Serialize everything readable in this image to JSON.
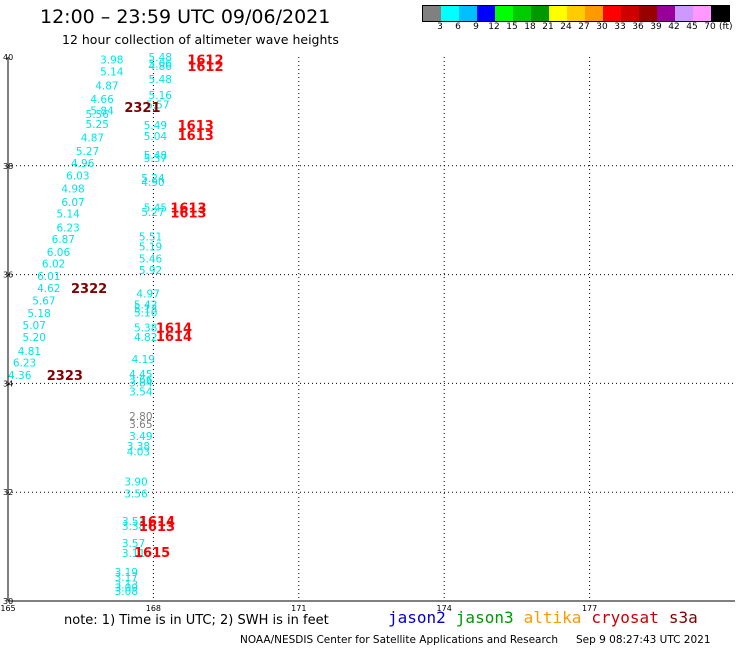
{
  "header": {
    "title": "12:00 – 23:59 UTC 09/06/2021",
    "subtitle": "12 hour collection of altimeter wave heights"
  },
  "legend": {
    "colors": [
      "#808080",
      "#00ffff",
      "#00bfff",
      "#0000ff",
      "#00ff00",
      "#00cc00",
      "#009900",
      "#ffff00",
      "#ffcc00",
      "#ff9900",
      "#ff0000",
      "#cc0000",
      "#990000",
      "#990099",
      "#cc99ff",
      "#ff99ff",
      "#000000"
    ],
    "labels": [
      "3",
      "6",
      "9",
      "12",
      "15",
      "18",
      "21",
      "24",
      "27",
      "30",
      "33",
      "36",
      "39",
      "42",
      "45",
      "70"
    ],
    "unit": "(ft)"
  },
  "map": {
    "lon_range": [
      165,
      180
    ],
    "lat_range": [
      30,
      40
    ],
    "lon_ticks": [
      "165",
      "168",
      "171",
      "174",
      "177"
    ],
    "lat_ticks": [
      "40",
      "38",
      "36",
      "34",
      "32",
      "30"
    ],
    "grid_lons": [
      168,
      171,
      174,
      177
    ],
    "grid_lats": [
      32,
      34,
      36,
      38
    ],
    "wave_color": "#00e5e5",
    "older_wave_color": "#808080",
    "time_color_recent": "#ff0000",
    "time_color_old": "#800000",
    "wave_heights": [
      {
        "lon": 166.9,
        "lat": 39.95,
        "v": "3.98"
      },
      {
        "lon": 166.9,
        "lat": 39.73,
        "v": "5.14"
      },
      {
        "lon": 166.8,
        "lat": 39.48,
        "v": "4.87"
      },
      {
        "lon": 166.7,
        "lat": 39.23,
        "v": "4.66"
      },
      {
        "lon": 166.7,
        "lat": 39.02,
        "v": "5.84"
      },
      {
        "lon": 166.6,
        "lat": 38.95,
        "v": "5.56"
      },
      {
        "lon": 166.6,
        "lat": 38.77,
        "v": "5.25"
      },
      {
        "lon": 166.5,
        "lat": 38.52,
        "v": "4.87"
      },
      {
        "lon": 166.4,
        "lat": 38.27,
        "v": "5.27"
      },
      {
        "lon": 166.3,
        "lat": 38.05,
        "v": "4.96"
      },
      {
        "lon": 166.2,
        "lat": 37.82,
        "v": "6.03"
      },
      {
        "lon": 166.1,
        "lat": 37.58,
        "v": "4.98"
      },
      {
        "lon": 166.1,
        "lat": 37.33,
        "v": "6.07"
      },
      {
        "lon": 166.0,
        "lat": 37.12,
        "v": "5.14"
      },
      {
        "lon": 166.0,
        "lat": 36.87,
        "v": "6.23"
      },
      {
        "lon": 165.9,
        "lat": 36.65,
        "v": "6.87"
      },
      {
        "lon": 165.8,
        "lat": 36.42,
        "v": "6.06"
      },
      {
        "lon": 165.7,
        "lat": 36.2,
        "v": "6.02"
      },
      {
        "lon": 165.6,
        "lat": 35.97,
        "v": "6.01"
      },
      {
        "lon": 165.6,
        "lat": 35.75,
        "v": "4.62"
      },
      {
        "lon": 165.5,
        "lat": 35.52,
        "v": "5.67"
      },
      {
        "lon": 165.4,
        "lat": 35.29,
        "v": "5.18"
      },
      {
        "lon": 165.3,
        "lat": 35.07,
        "v": "5.07"
      },
      {
        "lon": 165.3,
        "lat": 34.85,
        "v": "5.20"
      },
      {
        "lon": 165.2,
        "lat": 34.6,
        "v": "4.81"
      },
      {
        "lon": 165.1,
        "lat": 34.38,
        "v": "6.23"
      },
      {
        "lon": 165.0,
        "lat": 34.15,
        "v": "4.36"
      },
      {
        "lon": 167.9,
        "lat": 40.0,
        "v": "5.48"
      },
      {
        "lon": 167.9,
        "lat": 39.88,
        "v": "5.06"
      },
      {
        "lon": 167.9,
        "lat": 39.83,
        "v": "4.86"
      },
      {
        "lon": 167.9,
        "lat": 39.6,
        "v": "5.48"
      },
      {
        "lon": 167.9,
        "lat": 39.3,
        "v": "5.16"
      },
      {
        "lon": 167.85,
        "lat": 39.13,
        "v": "5.57"
      },
      {
        "lon": 167.8,
        "lat": 38.75,
        "v": "5.49"
      },
      {
        "lon": 167.8,
        "lat": 38.55,
        "v": "5.04"
      },
      {
        "lon": 167.8,
        "lat": 38.2,
        "v": "5.48"
      },
      {
        "lon": 167.8,
        "lat": 38.14,
        "v": "5.37"
      },
      {
        "lon": 167.75,
        "lat": 37.78,
        "v": "5.24"
      },
      {
        "lon": 167.75,
        "lat": 37.7,
        "v": "4.90"
      },
      {
        "lon": 167.8,
        "lat": 37.23,
        "v": "5.45"
      },
      {
        "lon": 167.75,
        "lat": 37.15,
        "v": "5.27"
      },
      {
        "lon": 167.7,
        "lat": 36.7,
        "v": "5.51"
      },
      {
        "lon": 167.7,
        "lat": 36.52,
        "v": "5.19"
      },
      {
        "lon": 167.7,
        "lat": 36.3,
        "v": "5.46"
      },
      {
        "lon": 167.7,
        "lat": 36.08,
        "v": "5.92"
      },
      {
        "lon": 167.65,
        "lat": 35.65,
        "v": "4.97"
      },
      {
        "lon": 167.6,
        "lat": 35.45,
        "v": "5.42"
      },
      {
        "lon": 167.6,
        "lat": 35.38,
        "v": "5.13"
      },
      {
        "lon": 167.6,
        "lat": 35.3,
        "v": "5.10"
      },
      {
        "lon": 167.6,
        "lat": 35.03,
        "v": "5.38"
      },
      {
        "lon": 167.6,
        "lat": 34.85,
        "v": "4.82"
      },
      {
        "lon": 167.55,
        "lat": 34.45,
        "v": "4.19"
      },
      {
        "lon": 167.5,
        "lat": 34.17,
        "v": "4.45"
      },
      {
        "lon": 167.5,
        "lat": 34.07,
        "v": "3.66"
      },
      {
        "lon": 167.5,
        "lat": 34.02,
        "v": "3.84"
      },
      {
        "lon": 167.5,
        "lat": 33.85,
        "v": "3.54"
      },
      {
        "lon": 167.5,
        "lat": 33.03,
        "v": "3.49"
      },
      {
        "lon": 167.45,
        "lat": 32.85,
        "v": "3.38"
      },
      {
        "lon": 167.45,
        "lat": 32.75,
        "v": "4.03"
      },
      {
        "lon": 167.4,
        "lat": 32.2,
        "v": "3.90"
      },
      {
        "lon": 167.4,
        "lat": 31.98,
        "v": "3.56"
      },
      {
        "lon": 167.35,
        "lat": 31.47,
        "v": "3.51"
      },
      {
        "lon": 167.35,
        "lat": 31.38,
        "v": "3.38"
      },
      {
        "lon": 167.35,
        "lat": 31.07,
        "v": "3.57"
      },
      {
        "lon": 167.35,
        "lat": 30.88,
        "v": "3.11"
      },
      {
        "lon": 167.2,
        "lat": 30.53,
        "v": "3.19"
      },
      {
        "lon": 167.2,
        "lat": 30.44,
        "v": "3.17"
      },
      {
        "lon": 167.2,
        "lat": 30.3,
        "v": "3.13"
      },
      {
        "lon": 167.2,
        "lat": 30.25,
        "v": "3.09"
      },
      {
        "lon": 167.2,
        "lat": 30.18,
        "v": "3.08"
      }
    ],
    "older_wave_heights": [
      {
        "lon": 167.5,
        "lat": 33.4,
        "v": "2.80"
      },
      {
        "lon": 167.5,
        "lat": 33.25,
        "v": "3.65"
      }
    ],
    "time_labels_recent": [
      {
        "lon": 168.7,
        "lat": 39.95,
        "v": "1612"
      },
      {
        "lon": 168.7,
        "lat": 39.83,
        "v": "1612"
      },
      {
        "lon": 168.5,
        "lat": 38.75,
        "v": "1613"
      },
      {
        "lon": 168.5,
        "lat": 38.57,
        "v": "1613"
      },
      {
        "lon": 168.35,
        "lat": 37.23,
        "v": "1613"
      },
      {
        "lon": 168.35,
        "lat": 37.14,
        "v": "1613"
      },
      {
        "lon": 168.05,
        "lat": 35.03,
        "v": "1614"
      },
      {
        "lon": 168.05,
        "lat": 34.87,
        "v": "1614"
      },
      {
        "lon": 167.7,
        "lat": 31.47,
        "v": "1614"
      },
      {
        "lon": 167.7,
        "lat": 31.38,
        "v": "1613"
      },
      {
        "lon": 167.6,
        "lat": 30.9,
        "v": "1615"
      }
    ],
    "time_labels_old": [
      {
        "lon": 167.4,
        "lat": 39.08,
        "v": "2321"
      },
      {
        "lon": 166.3,
        "lat": 35.75,
        "v": "2322"
      },
      {
        "lon": 165.8,
        "lat": 34.15,
        "v": "2323"
      }
    ]
  },
  "footer": {
    "note": "note:  1) Time is in UTC; 2) SWH is in feet",
    "satellites": [
      {
        "name": "jason2",
        "color": "#0000cc"
      },
      {
        "name": "jason3",
        "color": "#009900"
      },
      {
        "name": "altika",
        "color": "#ff9900"
      },
      {
        "name": "cryosat",
        "color": "#cc0000"
      },
      {
        "name": "s3a",
        "color": "#800000"
      }
    ],
    "credit": "NOAA/NESDIS Center for Satellite Applications and Research",
    "timestamp": "Sep  9 08:27:43 UTC 2021"
  }
}
